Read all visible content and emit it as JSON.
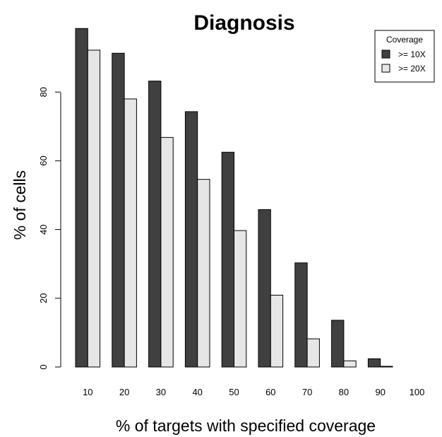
{
  "chart_data": {
    "type": "bar",
    "title": "Diagnosis",
    "xlabel": "% of targets with specified coverage",
    "ylabel": "% of cells",
    "categories": [
      "10",
      "20",
      "30",
      "40",
      "50",
      "60",
      "70",
      "80",
      "90",
      "100"
    ],
    "series": [
      {
        "name": ">= 10X",
        "color": "#404040",
        "values": [
          98.5,
          91.3,
          83.2,
          74.3,
          62.5,
          45.8,
          30.3,
          13.6,
          2.4,
          0
        ]
      },
      {
        "name": ">= 20X",
        "color": "#e6e6e6",
        "values": [
          92.2,
          78.0,
          66.8,
          54.6,
          39.7,
          20.9,
          8.2,
          1.8,
          0.2,
          0
        ]
      }
    ],
    "yticks": [
      0,
      20,
      40,
      60,
      80
    ],
    "ylim": [
      0,
      100
    ],
    "legend": {
      "title": "Coverage",
      "position": "top-right"
    },
    "grid": false
  }
}
